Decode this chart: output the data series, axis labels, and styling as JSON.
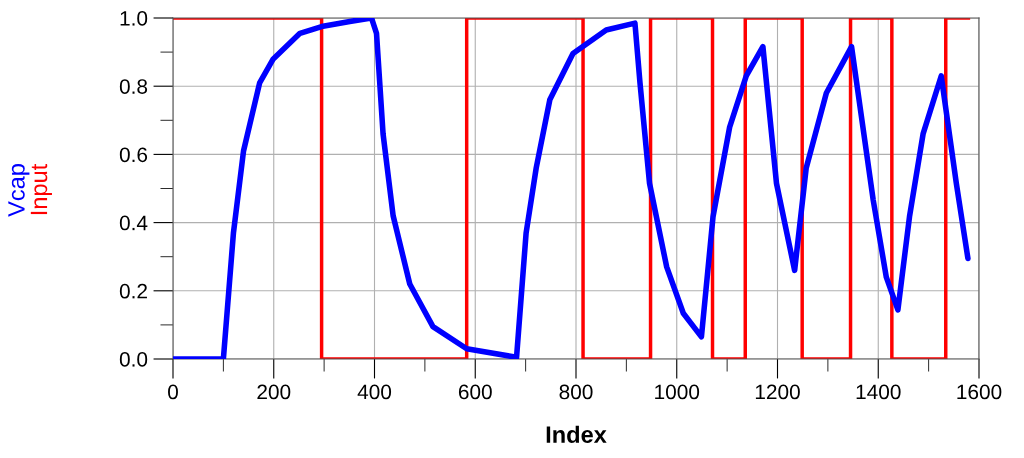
{
  "chart_data": {
    "type": "line",
    "xlabel": "Index",
    "xlim": [
      0,
      1600
    ],
    "ylim": [
      0,
      1.0
    ],
    "xticks": [
      0,
      {
        "value": 100,
        "label": null
      },
      200,
      {
        "value": 300,
        "label": null
      },
      400,
      {
        "value": 500,
        "label": null
      },
      600,
      {
        "value": 700,
        "label": null
      },
      800,
      {
        "value": 900,
        "label": null
      },
      1000,
      {
        "value": 1100,
        "label": null
      },
      1200,
      {
        "value": 1300,
        "label": null
      },
      1400,
      {
        "value": 1500,
        "label": null
      },
      1600
    ],
    "yticks": [
      {
        "value": 0,
        "label": "0.0"
      },
      {
        "value": 0.1,
        "label": null
      },
      0.2,
      {
        "value": 0.3,
        "label": null
      },
      0.4,
      {
        "value": 0.5,
        "label": null
      },
      0.6,
      {
        "value": 0.7,
        "label": null
      },
      0.8,
      {
        "value": 0.9,
        "label": null
      },
      {
        "value": 1.0,
        "label": "1.0"
      }
    ],
    "grid": true,
    "legend": false,
    "series": [
      {
        "name": "Vcap",
        "color": "#0000ff",
        "x": [
          0,
          100,
          120,
          140,
          172,
          199,
          252,
          295,
          351,
          394,
          404,
          417,
          437,
          470,
          516,
          583,
          682,
          701,
          721,
          748,
          794,
          860,
          917,
          927,
          946,
          980,
          1013,
          1049,
          1072,
          1105,
          1138,
          1171,
          1198,
          1234,
          1257,
          1297,
          1347,
          1390,
          1416,
          1439,
          1462,
          1489,
          1525,
          1555,
          1578
        ],
        "values": [
          0,
          0,
          0.37,
          0.61,
          0.81,
          0.88,
          0.955,
          0.975,
          0.99,
          1.0,
          0.955,
          0.66,
          0.42,
          0.22,
          0.095,
          0.03,
          0.005,
          0.37,
          0.56,
          0.76,
          0.896,
          0.965,
          0.985,
          0.81,
          0.515,
          0.27,
          0.134,
          0.065,
          0.417,
          0.68,
          0.83,
          0.916,
          0.515,
          0.26,
          0.56,
          0.78,
          0.916,
          0.466,
          0.24,
          0.144,
          0.417,
          0.66,
          0.83,
          0.515,
          0.295
        ]
      },
      {
        "name": "Input",
        "color": "#ff0000",
        "type": "step",
        "x": [
          0,
          295,
          583,
          814,
          948,
          1071,
          1136,
          1249,
          1345,
          1427,
          1534,
          1579
        ],
        "values": [
          1,
          0,
          1,
          0,
          1,
          0,
          1,
          0,
          1,
          0,
          1,
          1
        ]
      }
    ]
  }
}
